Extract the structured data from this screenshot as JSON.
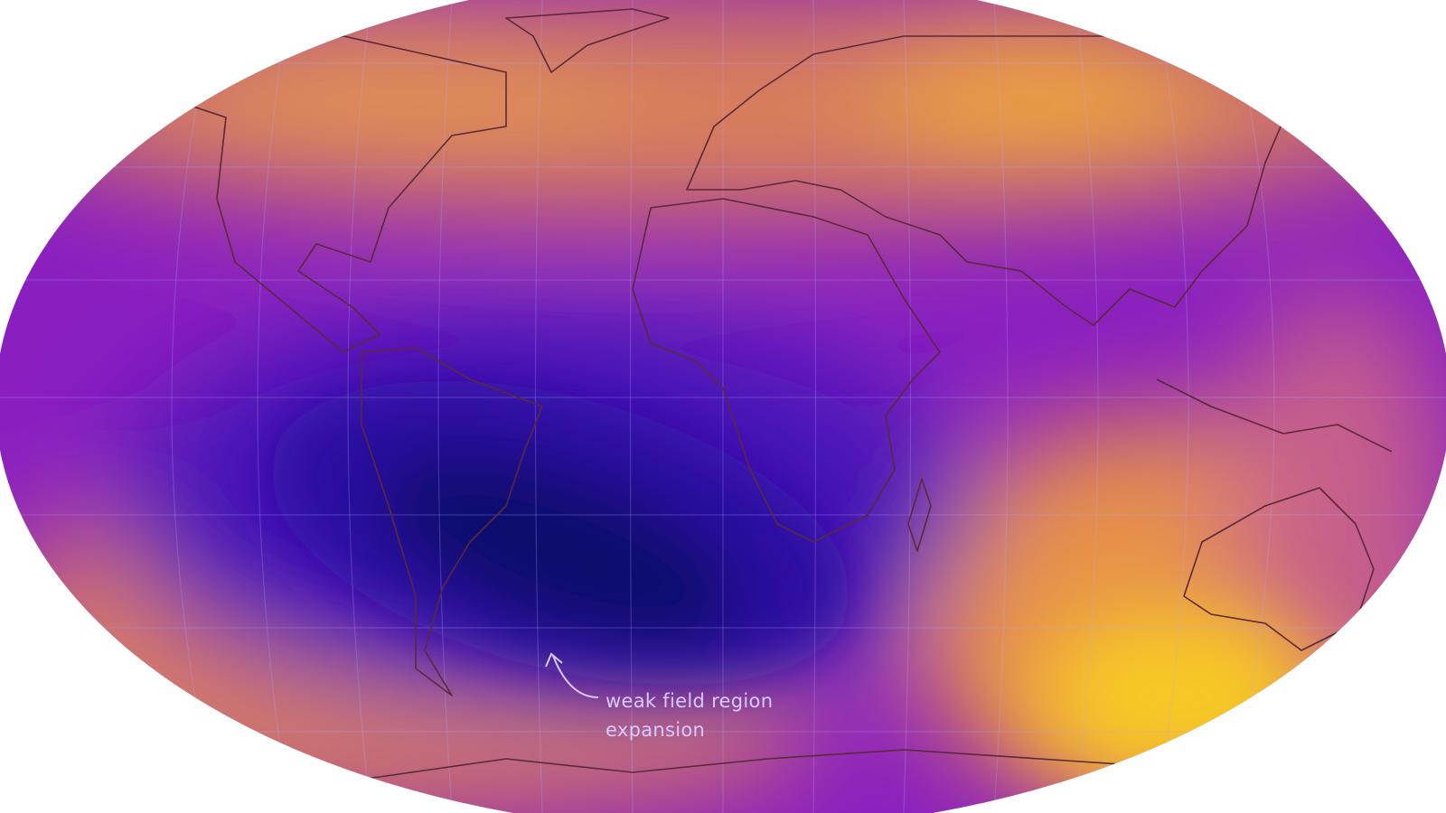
{
  "map": {
    "projection": "robinson-like elliptical world map",
    "colormap": [
      "#0c0a6e",
      "#2a0fa0",
      "#6a14c8",
      "#9a2bb8",
      "#c8608a",
      "#e08e55",
      "#f2b238",
      "#fde50a"
    ],
    "colors": {
      "weak_field": "#0c0a6e",
      "mid_field": "#8a1fc0",
      "strong_field": "#e8924a",
      "strongest_field": "#fde50a",
      "coastline": "#5a2a3a",
      "graticule": "#b9a6ff"
    },
    "annotation": {
      "line1": "weak field region",
      "line2": "expansion"
    }
  }
}
